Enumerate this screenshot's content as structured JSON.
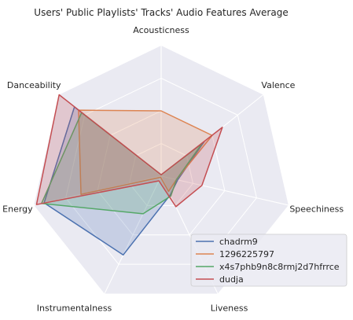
{
  "chart_data": {
    "type": "radar",
    "title": "Users' Public Playlists' Tracks' Audio Features Average",
    "axes": [
      "Acousticness",
      "Valence",
      "Speechiness",
      "Liveness",
      "Instrumentalness",
      "Energy",
      "Danceability"
    ],
    "range": [
      0,
      1
    ],
    "grid": true,
    "legend_position": "lower-right",
    "series": [
      {
        "name": "chadrm9",
        "color": "#4c72b0",
        "values": [
          0.01,
          0.42,
          0.13,
          0.16,
          0.67,
          0.92,
          0.85
        ]
      },
      {
        "name": "1296225797",
        "color": "#dd8452",
        "values": [
          0.5,
          0.5,
          0.12,
          0.13,
          0.01,
          0.63,
          0.81
        ]
      },
      {
        "name": "x4s7phb9n8c8rmj2d7hfrrce",
        "color": "#55a868",
        "values": [
          0.01,
          0.4,
          0.12,
          0.17,
          0.32,
          0.94,
          0.78
        ]
      },
      {
        "name": "dudja",
        "color": "#c44e52",
        "values": [
          0.01,
          0.6,
          0.32,
          0.26,
          0.04,
          0.98,
          1.0
        ]
      }
    ]
  }
}
